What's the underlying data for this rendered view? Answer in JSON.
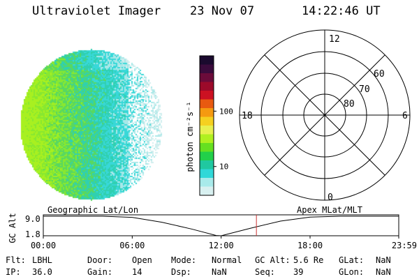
{
  "header": {
    "instrument": "Ultraviolet Imager",
    "date": "23 Nov 07",
    "time": "14:22:46 UT"
  },
  "colorbar": {
    "unit_label": "photon cm⁻²s⁻¹",
    "tick_labels": [
      "100",
      "10"
    ],
    "tick_values": [
      100,
      10
    ],
    "colors": [
      "#1a0a2e",
      "#3a0b3c",
      "#6b0b3a",
      "#9c0a2a",
      "#cc1122",
      "#e85a10",
      "#f59a10",
      "#f5d020",
      "#e8f050",
      "#b0f020",
      "#66e020",
      "#22d04a",
      "#20c8a0",
      "#30d8d8",
      "#a8eaea",
      "#d8f0f0"
    ]
  },
  "image_panel": {
    "palette": [
      "#a8f020",
      "#88e830",
      "#58d860",
      "#30d0b0",
      "#38d8d8",
      "#a8e8e8",
      "#d0eeee"
    ]
  },
  "polar_grid": {
    "mlt_labels": {
      "top": "12",
      "left": "18",
      "right": "6",
      "bottom": "0"
    },
    "lat_labels": [
      "60",
      "70",
      "80"
    ]
  },
  "timeline": {
    "axis_label": "GC Alt",
    "left_title": "Geographic Lat/Lon",
    "right_title": "Apex MLat/MLT",
    "y_ticks": [
      "9.0",
      "1.8"
    ],
    "x_ticks": [
      "00:00",
      "06:00",
      "12:00",
      "18:00",
      "23:59"
    ],
    "cursor_time": "14:22:46",
    "cursor_color": "#cc3333",
    "chart_data": {
      "type": "line",
      "x": [
        "00:00",
        "02:00",
        "04:00",
        "06:00",
        "08:00",
        "10:00",
        "11:40",
        "12:00",
        "14:00",
        "16:00",
        "18:00",
        "20:00",
        "22:00",
        "23:59"
      ],
      "y": [
        9.0,
        9.0,
        9.0,
        8.6,
        6.8,
        4.3,
        1.9,
        1.8,
        4.6,
        7.2,
        8.7,
        9.0,
        9.0,
        9.0
      ],
      "ylim": [
        1.8,
        9.0
      ],
      "ylabel": "GC Alt"
    }
  },
  "status": {
    "row1": [
      {
        "label": "Flt:",
        "value": "LBHL"
      },
      {
        "label": "Door:",
        "value": "Open"
      },
      {
        "label": "Mode:",
        "value": "Normal"
      },
      {
        "label": "GC Alt:",
        "value": "5.6 Re"
      },
      {
        "label": "GLat:",
        "value": "NaN"
      }
    ],
    "row2": [
      {
        "label": "IP:",
        "value": "36.0"
      },
      {
        "label": "Gain:",
        "value": "14"
      },
      {
        "label": "Dsp:",
        "value": "NaN"
      },
      {
        "label": "Seq:",
        "value": "39"
      },
      {
        "label": "GLon:",
        "value": "NaN"
      }
    ]
  }
}
